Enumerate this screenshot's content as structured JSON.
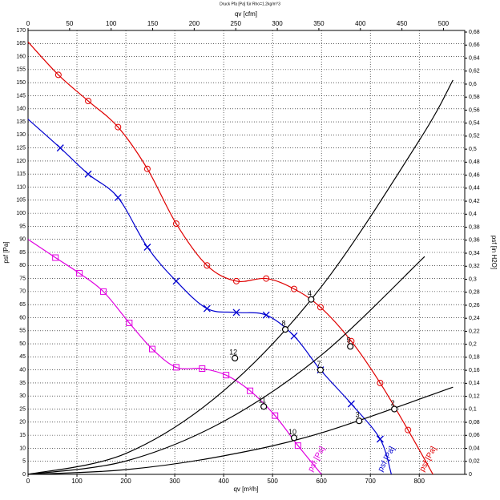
{
  "chart_data": {
    "type": "line",
    "title": "Druck Pfa [Pa] für Rho=1.2kg/m^3",
    "x_label": "qv [m³/h]",
    "x2_label": "qv [cfm]",
    "y_label": "psf [Pa]",
    "y2_label": "psf [in H2O]",
    "xlim": [
      0,
      893
    ],
    "xticks": [
      0,
      100,
      200,
      300,
      400,
      500,
      600,
      700,
      800
    ],
    "x2lim": [
      0,
      525.6
    ],
    "x2ticks": [
      0,
      50,
      100,
      150,
      200,
      250,
      300,
      350,
      400,
      450,
      500
    ],
    "ylim": [
      0,
      170
    ],
    "yticks": [
      0,
      5,
      10,
      15,
      20,
      25,
      30,
      35,
      40,
      45,
      50,
      55,
      60,
      65,
      70,
      75,
      80,
      85,
      90,
      95,
      100,
      105,
      110,
      115,
      120,
      125,
      130,
      135,
      140,
      145,
      150,
      155,
      160,
      165,
      170
    ],
    "y2lim": [
      0,
      0.6825
    ],
    "y2ticks": [
      0,
      {
        "value": 0.02,
        "label": "0,02"
      },
      {
        "value": 0.04,
        "label": "0,04"
      },
      {
        "value": 0.06,
        "label": "0,06"
      },
      {
        "value": 0.08,
        "label": "0,08"
      },
      {
        "value": 0.1,
        "label": "0,1"
      },
      {
        "value": 0.12,
        "label": "0,12"
      },
      {
        "value": 0.14,
        "label": "0,14"
      },
      {
        "value": 0.16,
        "label": "0,16"
      },
      {
        "value": 0.18,
        "label": "0,18"
      },
      {
        "value": 0.2,
        "label": "0,2"
      },
      {
        "value": 0.22,
        "label": "0,22"
      },
      {
        "value": 0.24,
        "label": "0,24"
      },
      {
        "value": 0.26,
        "label": "0,26"
      },
      {
        "value": 0.28,
        "label": "0,28"
      },
      {
        "value": 0.3,
        "label": "0,3"
      },
      {
        "value": 0.32,
        "label": "0,32"
      },
      {
        "value": 0.34,
        "label": "0,34"
      },
      {
        "value": 0.36,
        "label": "0,36"
      },
      {
        "value": 0.38,
        "label": "0,38"
      },
      {
        "value": 0.4,
        "label": "0,4"
      },
      {
        "value": 0.42,
        "label": "0,42"
      },
      {
        "value": 0.44,
        "label": "0,44"
      },
      {
        "value": 0.46,
        "label": "0,46"
      },
      {
        "value": 0.48,
        "label": "0,48"
      },
      {
        "value": 0.5,
        "label": "0,5"
      },
      {
        "value": 0.52,
        "label": "0,52"
      },
      {
        "value": 0.54,
        "label": "0,54"
      },
      {
        "value": 0.56,
        "label": "0,56"
      },
      {
        "value": 0.58,
        "label": "0,58"
      },
      {
        "value": 0.6,
        "label": "0,6"
      },
      {
        "value": 0.62,
        "label": "0,62"
      },
      {
        "value": 0.64,
        "label": "0,64"
      },
      {
        "value": 0.66,
        "label": "0,66"
      },
      {
        "value": 0.68,
        "label": "0,68"
      }
    ],
    "grid": true,
    "series": [
      {
        "name": "psf [Pa]",
        "color": "#e00000",
        "marker": "circle",
        "x": [
          0,
          62,
          123,
          184,
          244,
          303,
          366,
          426,
          487,
          544,
          598,
          661,
          720,
          777,
          828
        ],
        "values": [
          165.6,
          153,
          143,
          133,
          117,
          96,
          80,
          74,
          75,
          71,
          64,
          51,
          35,
          17,
          0
        ]
      },
      {
        "name": "psf [Pa]",
        "color": "#0000d0",
        "marker": "cross",
        "x": [
          0,
          66,
          123,
          184,
          244,
          303,
          366,
          426,
          487,
          544,
          598,
          661,
          720,
          743
        ],
        "values": [
          136,
          125,
          115,
          106,
          87,
          74,
          63.5,
          62,
          61,
          53,
          40,
          27,
          13.5,
          0
        ]
      },
      {
        "name": "psf [Pa]",
        "color": "#e000e0",
        "marker": "square",
        "x": [
          0,
          56,
          105,
          154,
          207,
          254,
          303,
          356,
          405,
          454,
          505,
          552,
          600
        ],
        "values": [
          90,
          83,
          77,
          70,
          58,
          48,
          41,
          40.5,
          38,
          32,
          22.5,
          11,
          0
        ]
      },
      {
        "color": "#000000",
        "marker": "none",
        "x": [
          0,
          200,
          400,
          600,
          800,
          869
        ],
        "values": [
          0,
          8,
          32,
          71.9,
          127.9,
          151
        ]
      },
      {
        "color": "#000000",
        "marker": "none",
        "x": [
          0,
          200,
          400,
          600,
          811
        ],
        "values": [
          0,
          5.1,
          20.3,
          45.7,
          83.4
        ]
      },
      {
        "color": "#000000",
        "marker": "none",
        "x": [
          0,
          200,
          400,
          600,
          869
        ],
        "values": [
          0,
          1.8,
          7.1,
          15.9,
          33.4
        ]
      }
    ],
    "points": [
      {
        "label": "4",
        "x": 579,
        "y": 67
      },
      {
        "label": "8",
        "x": 526,
        "y": 55.5
      },
      {
        "label": "12",
        "x": 423,
        "y": 44.5
      },
      {
        "label": "5",
        "x": 659,
        "y": 49
      },
      {
        "label": "7",
        "x": 598,
        "y": 40
      },
      {
        "label": "11",
        "x": 482,
        "y": 26
      },
      {
        "label": "2",
        "x": 749,
        "y": 25
      },
      {
        "label": "3",
        "x": 677,
        "y": 20.5
      },
      {
        "label": "10",
        "x": 544,
        "y": 14
      }
    ]
  }
}
